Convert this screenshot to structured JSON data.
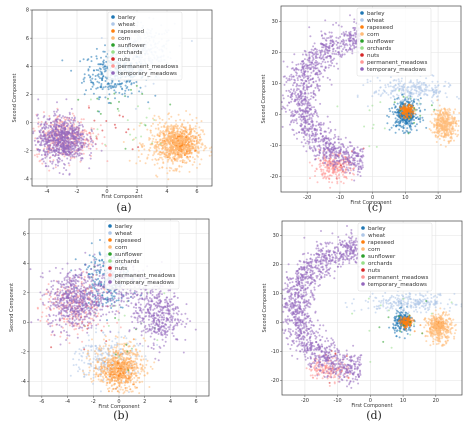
{
  "figure": {
    "panel_letters": [
      "(a)",
      "(c)",
      "(b)",
      "(d)"
    ]
  },
  "chart_data": [
    {
      "type": "scatter",
      "panel": "(a)",
      "xlabel": "First Component",
      "ylabel": "Second Component",
      "xlim": [
        -5,
        7
      ],
      "ylim": [
        -4.5,
        8
      ],
      "xticks": [
        -4,
        -2,
        0,
        2,
        4,
        6
      ],
      "yticks": [
        -4,
        -2,
        0,
        2,
        4,
        6,
        8
      ],
      "grid": true,
      "legend": "top-right",
      "series": [
        {
          "name": "barley",
          "color": "#1f77b4",
          "clusters": [
            {
              "cx": 0.5,
              "cy": 3.5,
              "sx": 1.0,
              "sy": 0.8,
              "n": 340
            }
          ]
        },
        {
          "name": "wheat",
          "color": "#aec7e8",
          "clusters": [
            {
              "cx": 2.5,
              "cy": 5.0,
              "sx": 1.0,
              "sy": 1.0,
              "n": 340
            }
          ]
        },
        {
          "name": "rapeseed",
          "color": "#ff7f0e",
          "clusters": [
            {
              "cx": 4.8,
              "cy": -1.5,
              "sx": 0.5,
              "sy": 0.5,
              "n": 300
            }
          ]
        },
        {
          "name": "corn",
          "color": "#ffbb78",
          "clusters": [
            {
              "cx": 4.5,
              "cy": -1.5,
              "sx": 0.9,
              "sy": 0.8,
              "n": 700
            }
          ]
        },
        {
          "name": "sunflower",
          "color": "#2ca02c",
          "clusters": [
            {
              "cx": 2.0,
              "cy": 1.0,
              "sx": 1.5,
              "sy": 1.2,
              "n": 15
            }
          ]
        },
        {
          "name": "orchards",
          "color": "#98df8a",
          "clusters": [
            {
              "cx": 1.0,
              "cy": 0.0,
              "sx": 2.0,
              "sy": 1.5,
              "n": 20
            }
          ]
        },
        {
          "name": "nuts",
          "color": "#d62728",
          "clusters": [
            {
              "cx": 0.0,
              "cy": 0.0,
              "sx": 1.5,
              "sy": 1.0,
              "n": 15
            }
          ]
        },
        {
          "name": "permanent_meadows",
          "color": "#ff9896",
          "clusters": [
            {
              "cx": -2.8,
              "cy": -1.0,
              "sx": 1.0,
              "sy": 0.8,
              "n": 350
            }
          ]
        },
        {
          "name": "temporary_meadows",
          "color": "#9467bd",
          "clusters": [
            {
              "cx": -3.0,
              "cy": -1.2,
              "sx": 0.8,
              "sy": 0.8,
              "n": 800
            }
          ]
        }
      ]
    },
    {
      "type": "scatter",
      "panel": "(c)",
      "xlabel": "First Component",
      "ylabel": "Second Component",
      "xlim": [
        -28,
        27
      ],
      "ylim": [
        -25,
        35
      ],
      "xticks": [
        -20,
        -10,
        0,
        10,
        20
      ],
      "yticks": [
        -20,
        -10,
        0,
        10,
        20,
        30
      ],
      "grid": true,
      "legend": "top-right",
      "series": [
        {
          "name": "barley",
          "color": "#1f77b4",
          "clusters": [
            {
              "cx": 10.0,
              "cy": 0.0,
              "sx": 2.0,
              "sy": 2.5,
              "n": 350
            }
          ]
        },
        {
          "name": "wheat",
          "color": "#aec7e8",
          "clusters": [
            {
              "cx": 12.0,
              "cy": 8.0,
              "sx": 6.0,
              "sy": 2.0,
              "n": 250
            }
          ]
        },
        {
          "name": "rapeseed",
          "color": "#ff7f0e",
          "clusters": [
            {
              "cx": 10.5,
              "cy": 1.0,
              "sx": 1.0,
              "sy": 1.0,
              "n": 150
            }
          ]
        },
        {
          "name": "corn",
          "color": "#ffbb78",
          "clusters": [
            {
              "cx": 22.0,
              "cy": -3.0,
              "sx": 1.8,
              "sy": 2.5,
              "n": 400
            }
          ]
        },
        {
          "name": "sunflower",
          "color": "#2ca02c",
          "clusters": [
            {
              "cx": 10.0,
              "cy": 0.0,
              "sx": 4.0,
              "sy": 4.0,
              "n": 10
            }
          ]
        },
        {
          "name": "orchards",
          "color": "#98df8a",
          "clusters": [
            {
              "cx": 5.0,
              "cy": 0.0,
              "sx": 8.0,
              "sy": 5.0,
              "n": 15
            }
          ]
        },
        {
          "name": "nuts",
          "color": "#d62728",
          "clusters": [
            {
              "cx": -10.0,
              "cy": -15.0,
              "sx": 3.0,
              "sy": 3.0,
              "n": 15
            }
          ]
        },
        {
          "name": "permanent_meadows",
          "color": "#ff9896",
          "clusters": [
            {
              "cx": -12.0,
              "cy": -17.0,
              "sx": 3.0,
              "sy": 2.0,
              "n": 250
            }
          ]
        },
        {
          "name": "temporary_meadows",
          "color": "#9467bd",
          "arc": {
            "cx": -2.0,
            "cy": 5.0,
            "r": 20.0,
            "a0": 95,
            "a1": 268,
            "w": 2.5,
            "n": 1200
          }
        }
      ]
    },
    {
      "type": "scatter",
      "panel": "(b)",
      "xlabel": "First Component",
      "ylabel": "Second Component",
      "xlim": [
        -7,
        7
      ],
      "ylim": [
        -5,
        7
      ],
      "xticks": [
        -6,
        -4,
        -2,
        0,
        2,
        4,
        6
      ],
      "yticks": [
        -4,
        -2,
        0,
        2,
        4,
        6
      ],
      "grid": true,
      "legend": "top-right",
      "series": [
        {
          "name": "barley",
          "color": "#1f77b4",
          "clusters": [
            {
              "cx": -1.0,
              "cy": 3.0,
              "sx": 1.0,
              "sy": 1.0,
              "n": 250
            }
          ]
        },
        {
          "name": "wheat",
          "color": "#aec7e8",
          "clusters": [
            {
              "cx": -1.0,
              "cy": -2.5,
              "sx": 1.2,
              "sy": 0.8,
              "n": 250
            }
          ]
        },
        {
          "name": "rapeseed",
          "color": "#ff7f0e",
          "clusters": [
            {
              "cx": 0.0,
              "cy": -3.3,
              "sx": 0.6,
              "sy": 0.5,
              "n": 250
            }
          ]
        },
        {
          "name": "corn",
          "color": "#ffbb78",
          "clusters": [
            {
              "cx": 0.0,
              "cy": -3.0,
              "sx": 1.0,
              "sy": 0.8,
              "n": 500
            }
          ]
        },
        {
          "name": "sunflower",
          "color": "#2ca02c",
          "clusters": [
            {
              "cx": 0.0,
              "cy": 0.0,
              "sx": 2.0,
              "sy": 2.0,
              "n": 12
            }
          ]
        },
        {
          "name": "orchards",
          "color": "#98df8a",
          "clusters": [
            {
              "cx": 1.0,
              "cy": 1.0,
              "sx": 2.0,
              "sy": 2.0,
              "n": 15
            }
          ]
        },
        {
          "name": "nuts",
          "color": "#d62728",
          "clusters": [
            {
              "cx": -2.0,
              "cy": 0.0,
              "sx": 1.5,
              "sy": 1.0,
              "n": 12
            }
          ]
        },
        {
          "name": "permanent_meadows",
          "color": "#ff9896",
          "clusters": [
            {
              "cx": -3.5,
              "cy": 1.0,
              "sx": 1.2,
              "sy": 1.0,
              "n": 250
            }
          ]
        },
        {
          "name": "temporary_meadows",
          "color": "#9467bd",
          "clusters": [
            {
              "cx": -3.5,
              "cy": 1.5,
              "sx": 1.0,
              "sy": 1.0,
              "n": 550
            },
            {
              "cx": 3.0,
              "cy": 0.5,
              "sx": 0.9,
              "sy": 1.0,
              "n": 400
            },
            {
              "cx": 0.0,
              "cy": 2.5,
              "sx": 1.3,
              "sy": 1.0,
              "n": 250
            }
          ]
        }
      ]
    },
    {
      "type": "scatter",
      "panel": "(d)",
      "xlabel": "First Component",
      "ylabel": "Second Component",
      "xlim": [
        -27,
        28
      ],
      "ylim": [
        -25,
        35
      ],
      "xticks": [
        -20,
        -10,
        0,
        10,
        20
      ],
      "yticks": [
        -20,
        -10,
        0,
        10,
        20,
        30
      ],
      "grid": true,
      "legend": "top-right",
      "series": [
        {
          "name": "barley",
          "color": "#1f77b4",
          "clusters": [
            {
              "cx": 10.0,
              "cy": 0.0,
              "sx": 1.5,
              "sy": 2.0,
              "n": 200
            }
          ]
        },
        {
          "name": "wheat",
          "color": "#aec7e8",
          "clusters": [
            {
              "cx": 12.0,
              "cy": 7.0,
              "sx": 7.0,
              "sy": 1.5,
              "n": 250
            }
          ]
        },
        {
          "name": "rapeseed",
          "color": "#ff7f0e",
          "clusters": [
            {
              "cx": 11.0,
              "cy": 0.0,
              "sx": 1.0,
              "sy": 1.0,
              "n": 120
            },
            {
              "cx": 21.0,
              "cy": -1.0,
              "sx": 1.0,
              "sy": 1.0,
              "n": 100
            }
          ]
        },
        {
          "name": "corn",
          "color": "#ffbb78",
          "clusters": [
            {
              "cx": 21.0,
              "cy": -2.0,
              "sx": 2.0,
              "sy": 2.5,
              "n": 350
            }
          ]
        },
        {
          "name": "sunflower",
          "color": "#2ca02c",
          "clusters": [
            {
              "cx": 10.0,
              "cy": 0.0,
              "sx": 4.0,
              "sy": 4.0,
              "n": 10
            }
          ]
        },
        {
          "name": "orchards",
          "color": "#98df8a",
          "clusters": [
            {
              "cx": 5.0,
              "cy": 0.0,
              "sx": 8.0,
              "sy": 5.0,
              "n": 12
            }
          ]
        },
        {
          "name": "nuts",
          "color": "#d62728",
          "clusters": [
            {
              "cx": -10.0,
              "cy": -15.0,
              "sx": 3.0,
              "sy": 3.0,
              "n": 12
            }
          ]
        },
        {
          "name": "permanent_meadows",
          "color": "#ff9896",
          "clusters": [
            {
              "cx": -13.0,
              "cy": -16.0,
              "sx": 3.0,
              "sy": 2.0,
              "n": 150
            }
          ]
        },
        {
          "name": "temporary_meadows",
          "color": "#9467bd",
          "arc": {
            "cx": -2.0,
            "cy": 5.0,
            "r": 21.0,
            "a0": 95,
            "a1": 268,
            "w": 2.6,
            "n": 1300
          }
        }
      ]
    }
  ]
}
